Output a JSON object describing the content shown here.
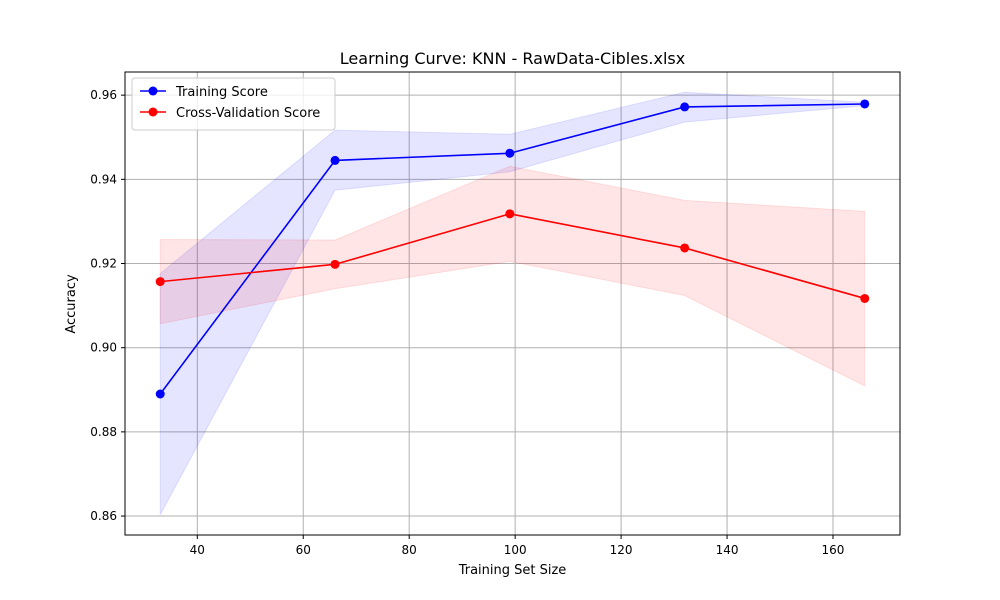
{
  "chart_data": {
    "type": "line",
    "title": "Learning Curve: KNN - RawData-Cibles.xlsx",
    "xlabel": "Training Set Size",
    "ylabel": "Accuracy",
    "xlim": [
      26.35,
      172.65
    ],
    "ylim": [
      0.8555,
      0.9655
    ],
    "xticks": [
      40,
      60,
      80,
      100,
      120,
      140,
      160
    ],
    "yticks": [
      0.86,
      0.88,
      0.9,
      0.92,
      0.94,
      0.96
    ],
    "ytick_labels": [
      "0.86",
      "0.88",
      "0.90",
      "0.92",
      "0.94",
      "0.96"
    ],
    "grid": true,
    "legend_position": "upper left",
    "x": [
      33,
      66,
      99,
      132,
      166
    ],
    "series": [
      {
        "name": "Training Score",
        "color": "#0000ff",
        "values": [
          0.889,
          0.9445,
          0.9462,
          0.9572,
          0.9579
        ],
        "band_lower": [
          0.8603,
          0.9374,
          0.9418,
          0.9536,
          0.9575
        ],
        "band_upper": [
          0.9176,
          0.9517,
          0.9507,
          0.9607,
          0.9583
        ]
      },
      {
        "name": "Cross-Validation Score",
        "color": "#ff0000",
        "values": [
          0.9157,
          0.9198,
          0.9318,
          0.9237,
          0.9117
        ],
        "band_lower": [
          0.9057,
          0.914,
          0.9205,
          0.9124,
          0.8909
        ],
        "band_upper": [
          0.9257,
          0.9256,
          0.9431,
          0.935,
          0.9324
        ]
      }
    ]
  }
}
